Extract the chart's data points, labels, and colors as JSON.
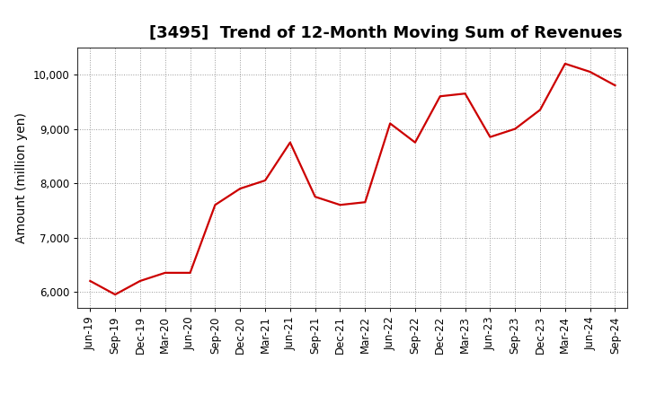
{
  "title": "[3495]  Trend of 12-Month Moving Sum of Revenues",
  "ylabel": "Amount (million yen)",
  "line_color": "#cc0000",
  "background_color": "#ffffff",
  "plot_bg_color": "#ffffff",
  "grid_color": "#999999",
  "x_labels": [
    "Jun-19",
    "Sep-19",
    "Dec-19",
    "Mar-20",
    "Jun-20",
    "Sep-20",
    "Dec-20",
    "Mar-21",
    "Jun-21",
    "Sep-21",
    "Dec-21",
    "Mar-22",
    "Jun-22",
    "Sep-22",
    "Dec-22",
    "Mar-23",
    "Jun-23",
    "Sep-23",
    "Dec-23",
    "Mar-24",
    "Jun-24",
    "Sep-24"
  ],
  "values": [
    6200,
    5950,
    6200,
    6350,
    6350,
    7600,
    7900,
    8050,
    8750,
    7750,
    7600,
    7650,
    9100,
    8750,
    9600,
    9650,
    8850,
    9000,
    9350,
    10200,
    10050,
    9800
  ],
  "ylim": [
    5700,
    10500
  ],
  "yticks": [
    6000,
    7000,
    8000,
    9000,
    10000
  ],
  "title_fontsize": 13,
  "tick_fontsize": 8.5,
  "ylabel_fontsize": 10
}
